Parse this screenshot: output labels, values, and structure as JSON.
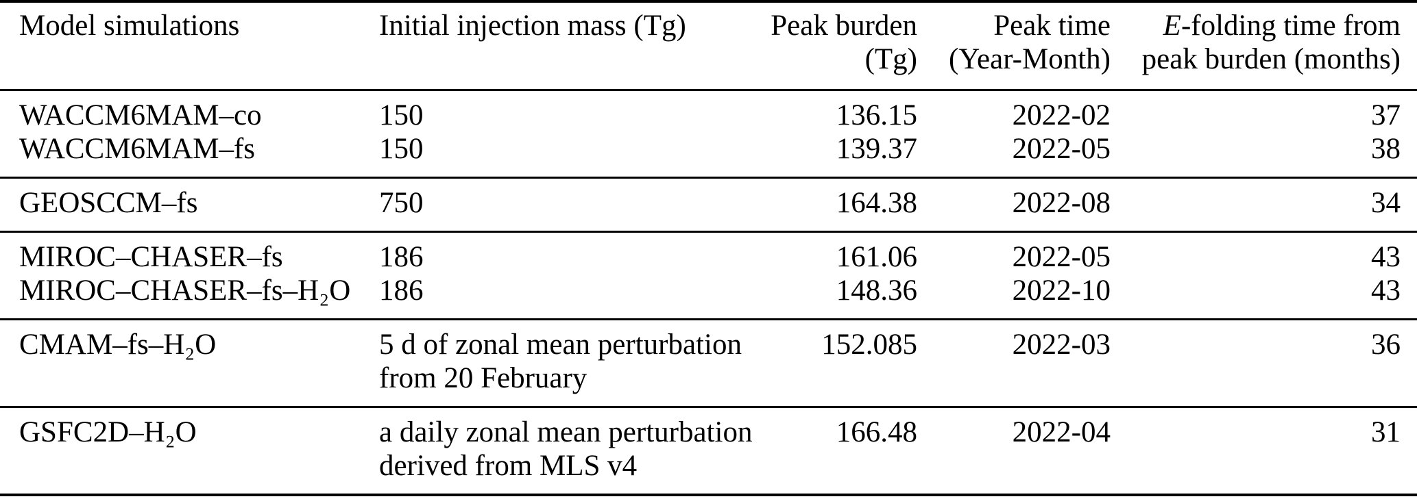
{
  "colors": {
    "background": "#ffffff",
    "text": "#000000",
    "rule": "#000000"
  },
  "table": {
    "columns": [
      {
        "label": "Model simulations",
        "align": "left"
      },
      {
        "label": "Initial injection mass (Tg)",
        "align": "left"
      },
      {
        "label_line1": "Peak burden",
        "label_line2": "(Tg)",
        "align": "right"
      },
      {
        "label_line1": "Peak time",
        "label_line2": "(Year-Month)",
        "align": "right"
      },
      {
        "label_italic": "E",
        "label_line1_rest": "-folding time from",
        "label_line2": "peak burden (months)",
        "align": "right"
      }
    ],
    "groups": [
      {
        "rows": [
          {
            "model": "WACCM6MAM–co",
            "mass": [
              "150"
            ],
            "peak_burden": "136.15",
            "peak_time": "2022-02",
            "efolding": "37"
          },
          {
            "model": "WACCM6MAM–fs",
            "mass": [
              "150"
            ],
            "peak_burden": "139.37",
            "peak_time": "2022-05",
            "efolding": "38"
          }
        ]
      },
      {
        "rows": [
          {
            "model": "GEOSCCM–fs",
            "mass": [
              "750"
            ],
            "peak_burden": "164.38",
            "peak_time": "2022-08",
            "efolding": "34"
          }
        ]
      },
      {
        "rows": [
          {
            "model": "MIROC–CHASER–fs",
            "mass": [
              "186"
            ],
            "peak_burden": "161.06",
            "peak_time": "2022-05",
            "efolding": "43"
          },
          {
            "model": "MIROC–CHASER–fs–H₂O",
            "mass": [
              "186"
            ],
            "peak_burden": "148.36",
            "peak_time": "2022-10",
            "efolding": "43"
          }
        ]
      },
      {
        "rows": [
          {
            "model": "CMAM–fs–H₂O",
            "mass": [
              "5 d of zonal mean perturbation",
              "from 20 February"
            ],
            "peak_burden": "152.085",
            "peak_time": "2022-03",
            "efolding": "36"
          }
        ]
      },
      {
        "rows": [
          {
            "model": "GSFC2D–H₂O",
            "mass": [
              "a daily zonal mean perturbation",
              "derived from MLS v4"
            ],
            "peak_burden": "166.48",
            "peak_time": "2022-04",
            "efolding": "31"
          }
        ]
      }
    ]
  }
}
